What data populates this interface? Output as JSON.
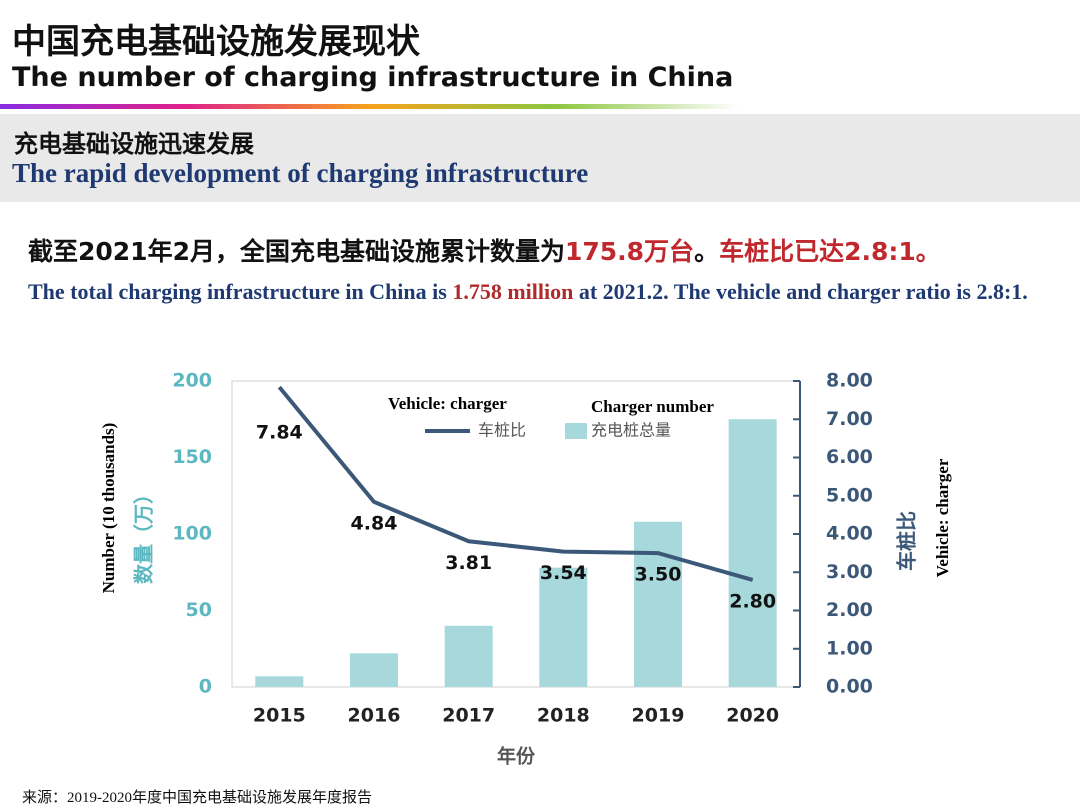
{
  "header": {
    "title": "中国充电基础设施发展现状",
    "subtitle": "The number of charging infrastructure in China"
  },
  "section": {
    "title": "充电基础设施迅速发展",
    "subtitle": "The rapid development of charging infrastructure"
  },
  "statement": {
    "zh": [
      {
        "text": "截至2021年2月，全国充电基础设施累计数量为",
        "color": "#111111"
      },
      {
        "text": "175.8万台",
        "color": "#c0282d"
      },
      {
        "text": "。",
        "color": "#111111"
      },
      {
        "text": "车桩比已达2.8:1。",
        "color": "#c0282d"
      }
    ],
    "en": [
      {
        "text": "The total charging infrastructure in China is ",
        "color": "#1f3a73"
      },
      {
        "text": "1.758 million",
        "color": "#b02a2a"
      },
      {
        "text": " at 2021.2. The vehicle and charger ratio is 2.8:1.",
        "color": "#1f3a73"
      }
    ]
  },
  "chart_data": {
    "type": "combo",
    "categories": [
      "2015",
      "2016",
      "2017",
      "2018",
      "2019",
      "2020"
    ],
    "series": [
      {
        "name": "充电桩总量",
        "type": "bar",
        "color": "#a7d8dc",
        "values": [
          7,
          22,
          40,
          78,
          108,
          175
        ]
      },
      {
        "name": "车桩比",
        "type": "line",
        "axis": "y2",
        "color": "#3b5878",
        "values": [
          7.84,
          4.84,
          3.81,
          3.54,
          3.5,
          2.8
        ],
        "value_labels": [
          "7.84",
          "4.84",
          "3.81",
          "3.54",
          "3.50",
          "2.80"
        ]
      }
    ],
    "ylim": [
      0,
      200
    ],
    "yticks": [
      0,
      50,
      100,
      150,
      200
    ],
    "y2lim": [
      0,
      8
    ],
    "y2ticks": [
      {
        "value": 0,
        "label": "0.00"
      },
      {
        "value": 1,
        "label": "1.00"
      },
      {
        "value": 2,
        "label": "2.00"
      },
      {
        "value": 3,
        "label": "3.00"
      },
      {
        "value": 4,
        "label": "4.00"
      },
      {
        "value": 5,
        "label": "5.00"
      },
      {
        "value": 6,
        "label": "6.00"
      },
      {
        "value": 7,
        "label": "7.00"
      },
      {
        "value": 8,
        "label": "8.00"
      }
    ],
    "xlabel": "年份",
    "ylabel": "数量（万）",
    "ylabel_en": "Number (10 thousands)",
    "y2label": "车桩比",
    "y2label_en": "Vehicle: charger",
    "legend_en": [
      "Charger number",
      "Vehicle: charger"
    ]
  },
  "source": "来源：2019-2020年度中国充电基础设施发展年度报告"
}
